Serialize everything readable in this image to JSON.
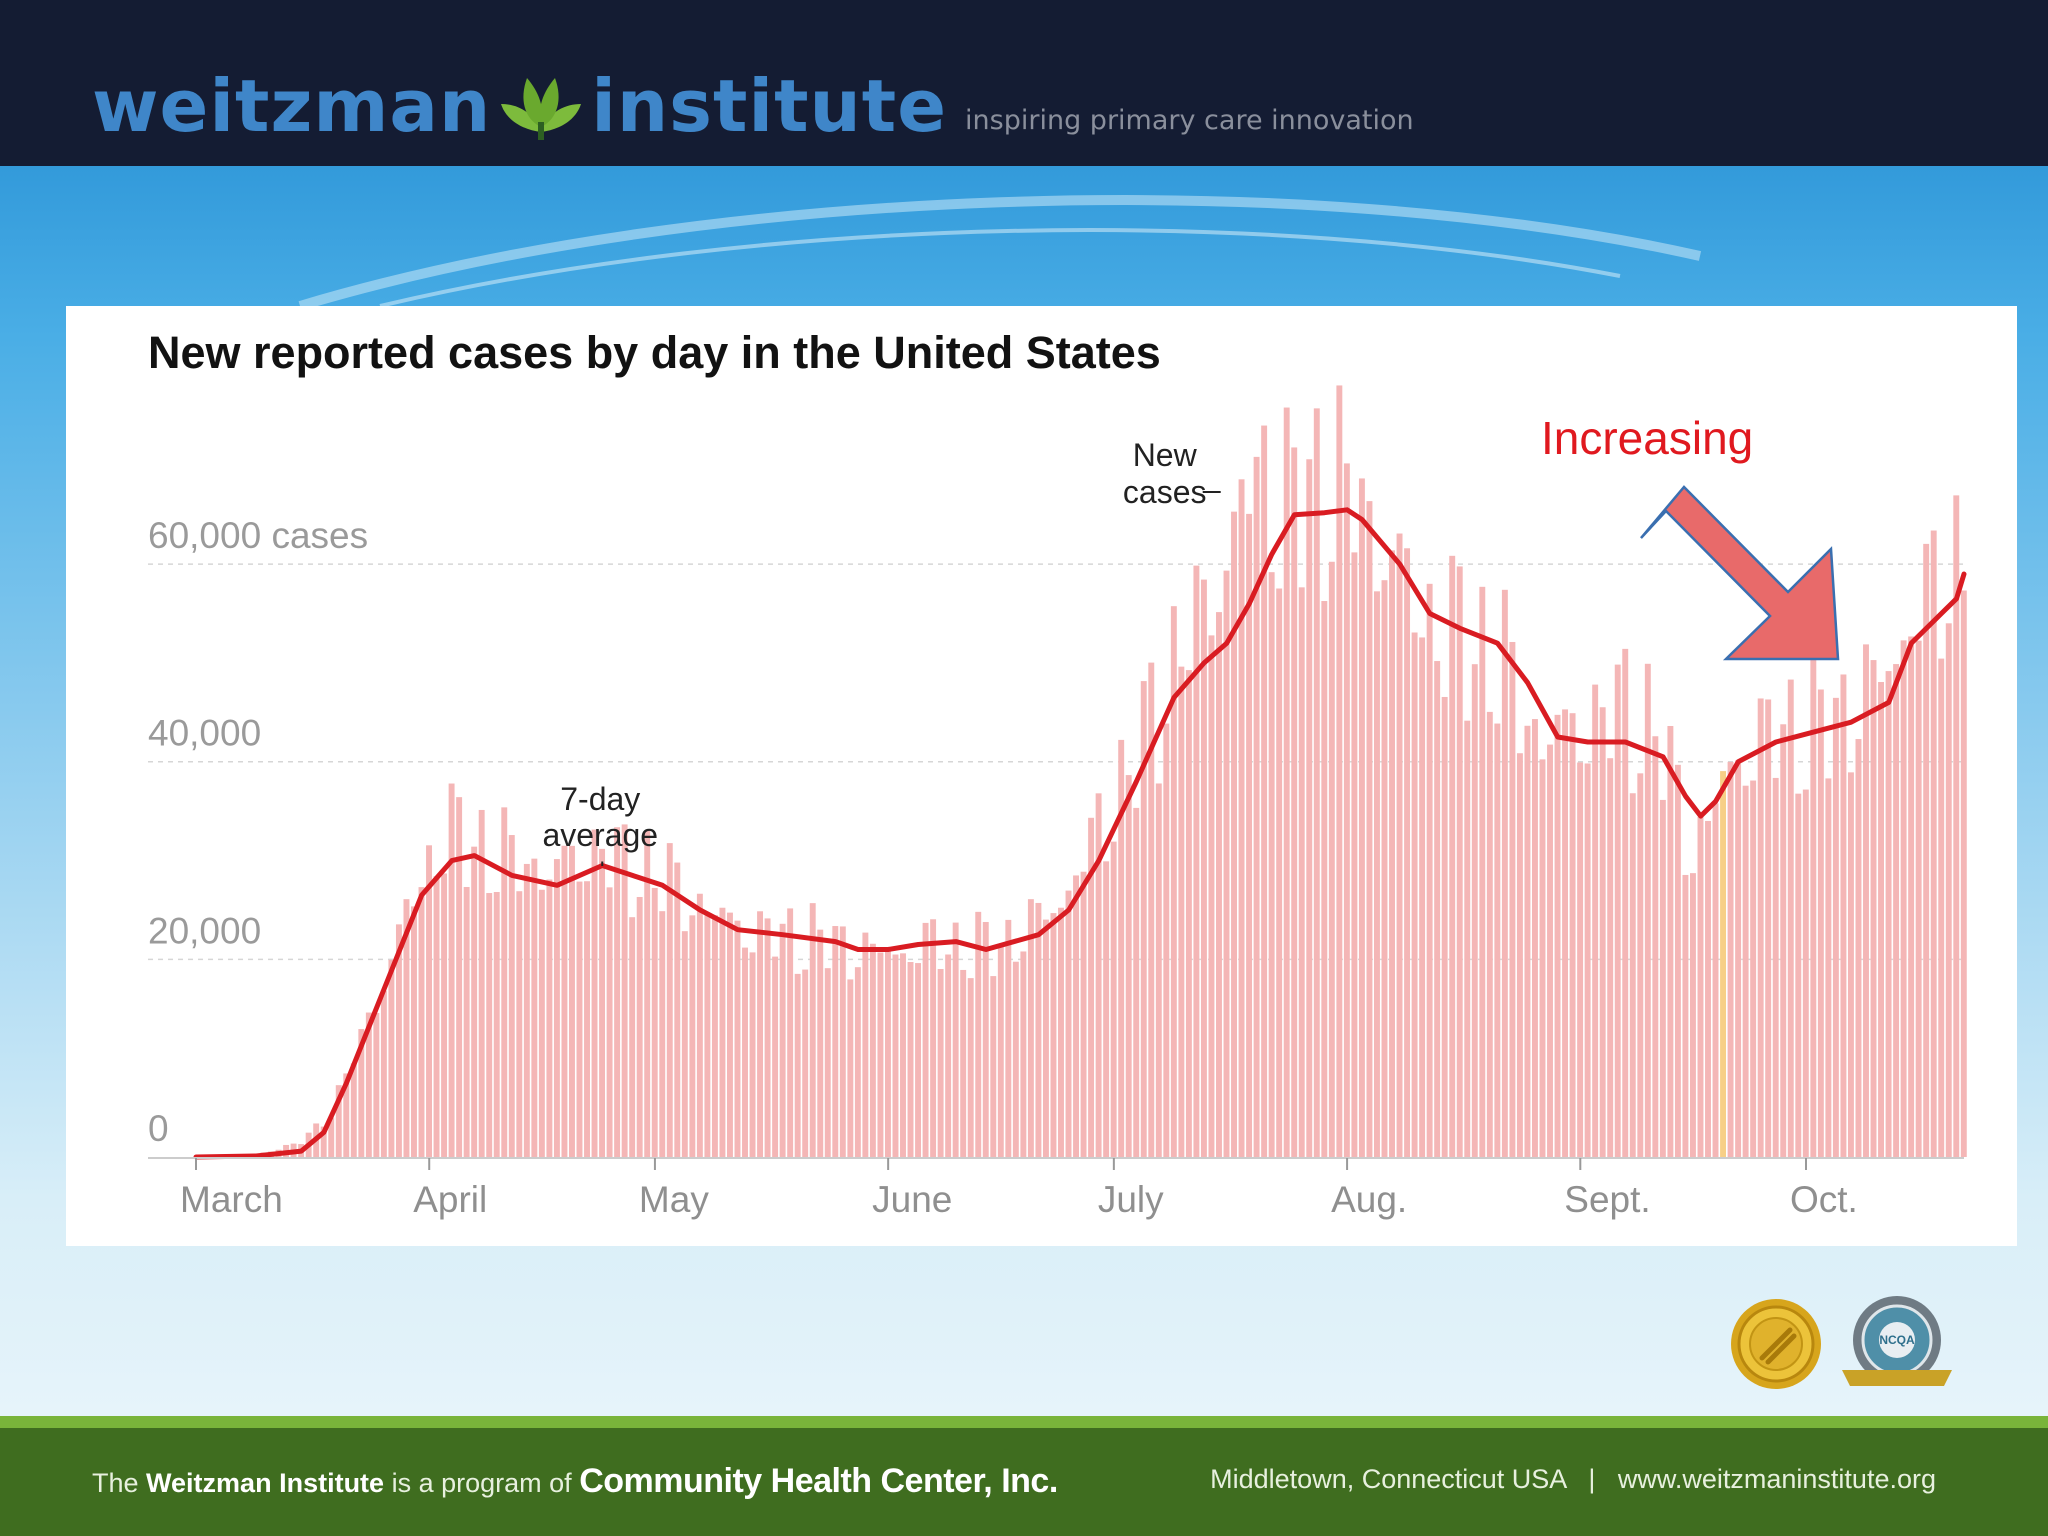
{
  "header": {
    "logo_left": "weitzman",
    "logo_right": "institute",
    "tagline": "inspiring primary care innovation"
  },
  "footer": {
    "prefix": "The",
    "institute": "Weitzman Institute",
    "middle": "is a program of",
    "organization": "Community Health Center, Inc.",
    "location": "Middletown, Connecticut USA",
    "separator": "|",
    "website": "www.weitzmaninstitute.org"
  },
  "badges": {
    "left": "Joint Commission gold seal",
    "right": "NCQA"
  },
  "annotation": {
    "text": "Increasing",
    "color": "#e0191f",
    "arrow_color": "#e86a6a"
  },
  "colors": {
    "bar": "#f4b6b6",
    "line": "#d91c22",
    "highlight": "#f7cf86"
  },
  "chart_data": {
    "type": "bar",
    "title": "New reported cases by day in the United States",
    "xlabel": "",
    "ylabel": "",
    "ylim": [
      0,
      76000
    ],
    "y_ticks": [
      0,
      20000,
      40000,
      60000
    ],
    "y_tick_labels": [
      "0",
      "20,000",
      "40,000",
      "60,000 cases"
    ],
    "x_start_day": 0,
    "x_end_day": 229,
    "month_ticks": [
      {
        "label": "March",
        "day": 0
      },
      {
        "label": "April",
        "day": 31
      },
      {
        "label": "May",
        "day": 61
      },
      {
        "label": "June",
        "day": 92
      },
      {
        "label": "July",
        "day": 122
      },
      {
        "label": "Aug.",
        "day": 153
      },
      {
        "label": "Sept.",
        "day": 184
      },
      {
        "label": "Oct.",
        "day": 214
      }
    ],
    "annotations": [
      {
        "text_lines": [
          "7-day",
          "average"
        ],
        "series": "7-day average",
        "day": 54
      },
      {
        "text_lines": [
          "New",
          "cases"
        ],
        "series": "New cases",
        "day": 137
      }
    ],
    "highlight_day": 203,
    "series": [
      {
        "name": "7-day average",
        "points": [
          [
            0,
            0
          ],
          [
            8,
            100
          ],
          [
            14,
            600
          ],
          [
            17,
            2500
          ],
          [
            20,
            7500
          ],
          [
            25,
            17000
          ],
          [
            30,
            26500
          ],
          [
            34,
            30000
          ],
          [
            37,
            30500
          ],
          [
            42,
            28500
          ],
          [
            48,
            27500
          ],
          [
            54,
            29500
          ],
          [
            58,
            28500
          ],
          [
            62,
            27500
          ],
          [
            67,
            25000
          ],
          [
            72,
            23000
          ],
          [
            78,
            22500
          ],
          [
            85,
            21800
          ],
          [
            88,
            21000
          ],
          [
            92,
            21000
          ],
          [
            96,
            21500
          ],
          [
            101,
            21800
          ],
          [
            105,
            21000
          ],
          [
            112,
            22500
          ],
          [
            116,
            25000
          ],
          [
            120,
            30000
          ],
          [
            125,
            38000
          ],
          [
            130,
            46500
          ],
          [
            134,
            50000
          ],
          [
            137,
            52000
          ],
          [
            140,
            56000
          ],
          [
            143,
            61000
          ],
          [
            146,
            65000
          ],
          [
            150,
            65200
          ],
          [
            153,
            65500
          ],
          [
            155,
            64500
          ],
          [
            160,
            60000
          ],
          [
            164,
            55000
          ],
          [
            168,
            53500
          ],
          [
            173,
            52000
          ],
          [
            177,
            48000
          ],
          [
            181,
            42500
          ],
          [
            185,
            42000
          ],
          [
            190,
            42000
          ],
          [
            195,
            40500
          ],
          [
            198,
            36500
          ],
          [
            200,
            34500
          ],
          [
            202,
            36000
          ],
          [
            205,
            40000
          ],
          [
            210,
            42000
          ],
          [
            215,
            43000
          ],
          [
            220,
            44000
          ],
          [
            225,
            46000
          ],
          [
            228,
            52000
          ],
          [
            232,
            55000
          ],
          [
            234,
            56500
          ],
          [
            235,
            59000
          ]
        ]
      },
      {
        "name": "New cases",
        "anchors": [
          [
            0,
            0
          ],
          [
            8,
            200
          ],
          [
            14,
            1500
          ],
          [
            18,
            4500
          ],
          [
            22,
            12000
          ],
          [
            26,
            20000
          ],
          [
            29,
            26500
          ],
          [
            31,
            29500
          ],
          [
            33,
            33000
          ],
          [
            36,
            32000
          ],
          [
            40,
            30500
          ],
          [
            44,
            29500
          ],
          [
            48,
            29000
          ],
          [
            52,
            30500
          ],
          [
            54,
            31500
          ],
          [
            56,
            29500
          ],
          [
            60,
            29000
          ],
          [
            64,
            27000
          ],
          [
            70,
            24000
          ],
          [
            76,
            22500
          ],
          [
            82,
            22000
          ],
          [
            88,
            21000
          ],
          [
            92,
            20500
          ],
          [
            98,
            21500
          ],
          [
            104,
            21000
          ],
          [
            110,
            22500
          ],
          [
            116,
            27000
          ],
          [
            120,
            33000
          ],
          [
            126,
            42000
          ],
          [
            130,
            50000
          ],
          [
            134,
            55000
          ],
          [
            138,
            63000
          ],
          [
            141,
            69000
          ],
          [
            145,
            66000
          ],
          [
            148,
            66500
          ],
          [
            151,
            68500
          ],
          [
            154,
            66000
          ],
          [
            158,
            62000
          ],
          [
            162,
            56000
          ],
          [
            166,
            53000
          ],
          [
            170,
            52000
          ],
          [
            174,
            49000
          ],
          [
            178,
            43000
          ],
          [
            182,
            42500
          ],
          [
            186,
            44500
          ],
          [
            190,
            45000
          ],
          [
            194,
            43000
          ],
          [
            197,
            36000
          ],
          [
            199,
            31000
          ],
          [
            201,
            34000
          ],
          [
            204,
            39000
          ],
          [
            207,
            42000
          ],
          [
            210,
            42500
          ],
          [
            214,
            43500
          ],
          [
            218,
            44000
          ],
          [
            222,
            47000
          ],
          [
            225,
            49000
          ],
          [
            228,
            55000
          ],
          [
            231,
            56500
          ],
          [
            233,
            58000
          ],
          [
            235,
            62000
          ]
        ]
      }
    ]
  }
}
